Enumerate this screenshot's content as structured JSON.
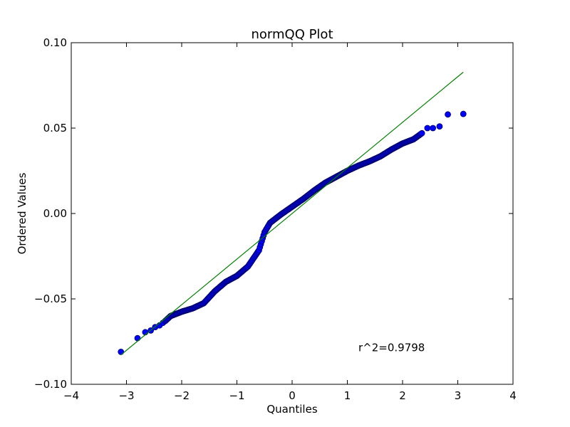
{
  "chart_data": {
    "type": "scatter",
    "title": "normQQ Plot",
    "xlabel": "Quantiles",
    "ylabel": "Ordered Values",
    "xlim": [
      -4,
      4
    ],
    "ylim": [
      -0.1,
      0.1
    ],
    "xticks": [
      -4,
      -3,
      -2,
      -1,
      0,
      1,
      2,
      3,
      4
    ],
    "xtick_labels": [
      "−4",
      "−3",
      "−2",
      "−1",
      "0",
      "1",
      "2",
      "3",
      "4"
    ],
    "yticks": [
      -0.1,
      -0.05,
      0.0,
      0.05,
      0.1
    ],
    "ytick_labels": [
      "−0.10",
      "−0.05",
      "0.00",
      "0.05",
      "0.10"
    ],
    "grid": false,
    "annotation": "r^2=0.9798",
    "annotation_position": {
      "x": 1.2,
      "y": -0.0785
    },
    "fit_line": {
      "slope": 0.0267,
      "intercept": 0.0,
      "x_range": [
        -3.1,
        3.1
      ],
      "color": "#008000"
    },
    "marker": {
      "fill": "#0000ff",
      "edge": "#000066"
    },
    "outliers": [
      {
        "x": -3.1,
        "y": -0.081
      },
      {
        "x": -2.8,
        "y": -0.073
      },
      {
        "x": -2.66,
        "y": -0.0695
      },
      {
        "x": -2.56,
        "y": -0.0685
      },
      {
        "x": -2.48,
        "y": -0.0665
      },
      {
        "x": -2.4,
        "y": -0.0655
      },
      {
        "x": -2.34,
        "y": -0.064
      },
      {
        "x": 2.45,
        "y": 0.05
      },
      {
        "x": 2.55,
        "y": 0.05
      },
      {
        "x": 2.67,
        "y": 0.051
      },
      {
        "x": 2.82,
        "y": 0.058
      },
      {
        "x": 3.1,
        "y": 0.0583
      }
    ],
    "curve_knots": [
      [
        -2.3,
        -0.063
      ],
      [
        -2.2,
        -0.06
      ],
      [
        -2.0,
        -0.0575
      ],
      [
        -1.8,
        -0.0555
      ],
      [
        -1.6,
        -0.0525
      ],
      [
        -1.5,
        -0.049
      ],
      [
        -1.4,
        -0.0455
      ],
      [
        -1.2,
        -0.04
      ],
      [
        -1.0,
        -0.0365
      ],
      [
        -0.8,
        -0.031
      ],
      [
        -0.6,
        -0.0215
      ],
      [
        -0.5,
        -0.011
      ],
      [
        -0.4,
        -0.0055
      ],
      [
        -0.2,
        -0.0005
      ],
      [
        0.0,
        0.004
      ],
      [
        0.2,
        0.0085
      ],
      [
        0.4,
        0.0135
      ],
      [
        0.6,
        0.018
      ],
      [
        0.8,
        0.0215
      ],
      [
        1.0,
        0.025
      ],
      [
        1.2,
        0.028
      ],
      [
        1.4,
        0.0305
      ],
      [
        1.6,
        0.0335
      ],
      [
        1.8,
        0.0375
      ],
      [
        2.0,
        0.041
      ],
      [
        2.2,
        0.0435
      ],
      [
        2.35,
        0.047
      ]
    ]
  }
}
